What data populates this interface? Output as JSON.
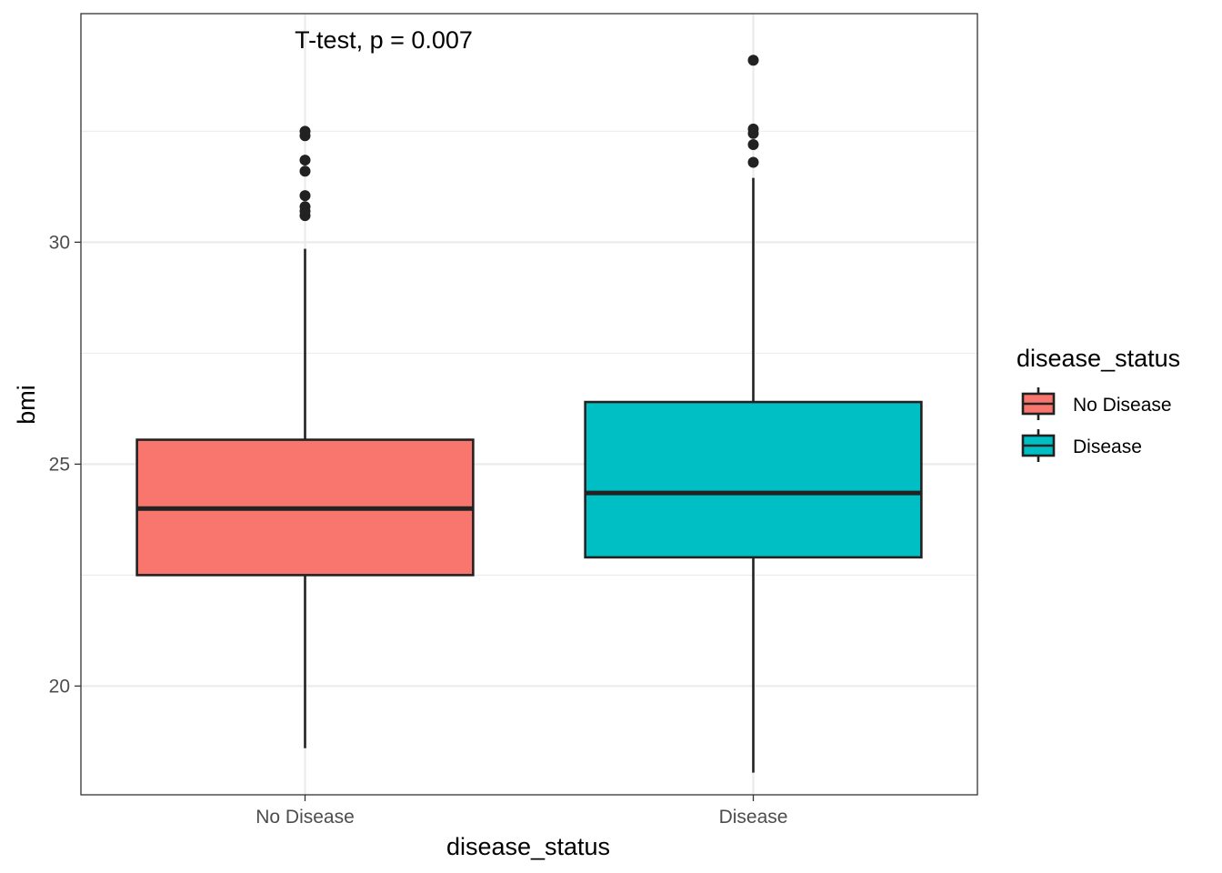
{
  "chart_data": {
    "type": "boxplot",
    "title": "",
    "annotation": "T-test, p = 0.007",
    "xlabel": "disease_status",
    "ylabel": "bmi",
    "categories": [
      "No Disease",
      "Disease"
    ],
    "ylim": [
      17.55,
      35.15
    ],
    "y_ticks": [
      20,
      25,
      30
    ],
    "y_tick_labels": [
      "20",
      "25",
      "30"
    ],
    "grid": true,
    "boxes": [
      {
        "category": "No Disease",
        "color": "#F8766D",
        "whisker_low": 18.6,
        "q1": 22.5,
        "median": 24.0,
        "q3": 25.55,
        "whisker_high": 29.85,
        "outliers": [
          30.6,
          30.7,
          30.8,
          31.05,
          31.6,
          31.85,
          32.4,
          32.5
        ]
      },
      {
        "category": "Disease",
        "color": "#00BFC4",
        "whisker_low": 18.05,
        "q1": 22.9,
        "median": 24.35,
        "q3": 26.4,
        "whisker_high": 31.45,
        "outliers": [
          31.8,
          32.2,
          32.45,
          32.55,
          34.1
        ]
      }
    ],
    "legend": {
      "title": "disease_status",
      "entries": [
        "No Disease",
        "Disease"
      ],
      "position": "right"
    }
  }
}
